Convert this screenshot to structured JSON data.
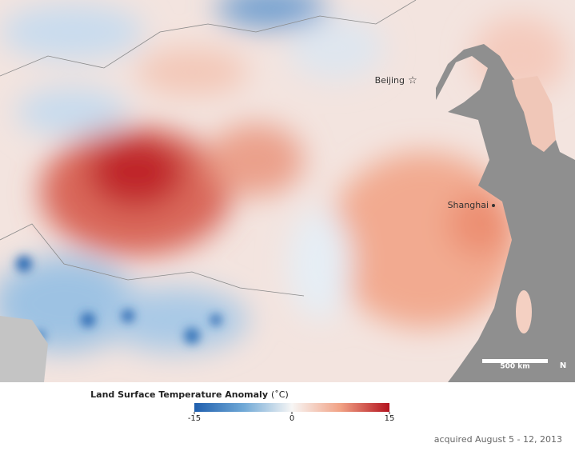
{
  "map": {
    "labels": [
      "Beijing",
      "Shanghai"
    ],
    "scale_bar": "500 km",
    "north": "N"
  },
  "legend": {
    "title": "Land Surface Temperature Anomaly",
    "unit": "(˚C)",
    "range": [
      -15,
      15
    ],
    "ticks": [
      -15,
      0,
      15
    ]
  },
  "caption": "acquired August 5 - 12, 2013"
}
